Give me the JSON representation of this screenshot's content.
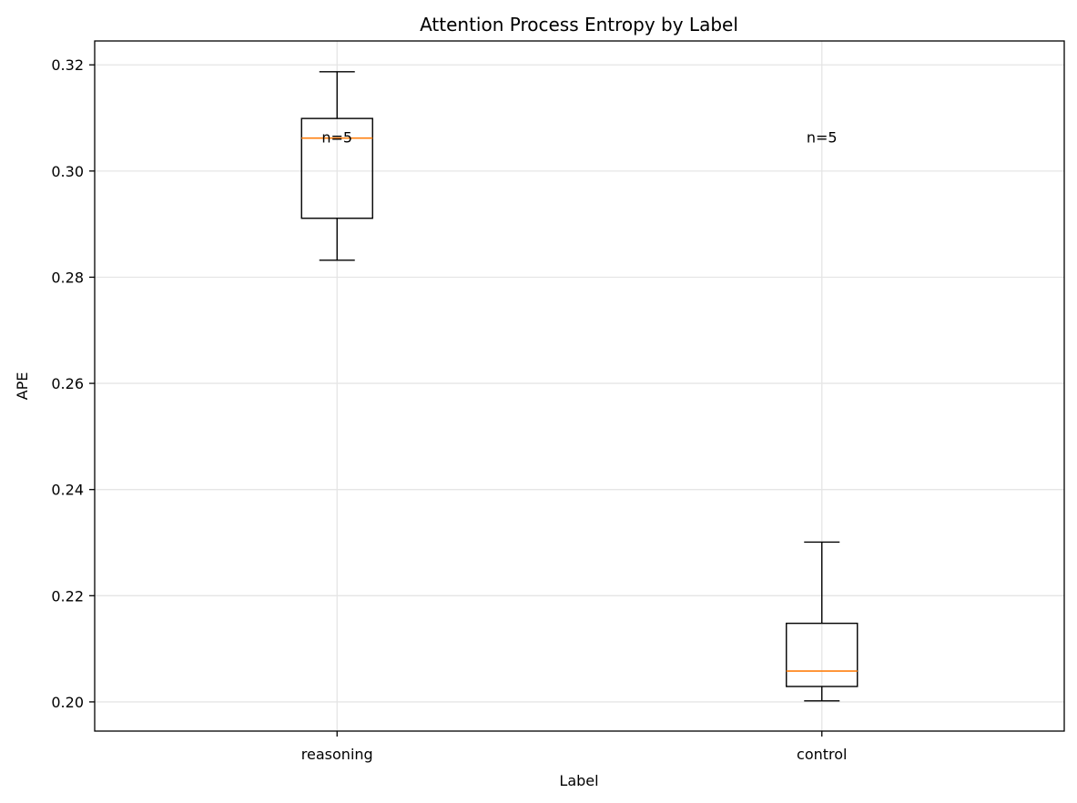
{
  "chart_data": {
    "type": "box",
    "title": "Attention Process Entropy by Label",
    "xlabel": "Label",
    "ylabel": "APE",
    "ylim": [
      0.1945,
      0.3245
    ],
    "yticks": [
      0.2,
      0.22,
      0.24,
      0.26,
      0.28,
      0.3,
      0.32
    ],
    "ytick_labels": [
      "0.20",
      "0.22",
      "0.24",
      "0.26",
      "0.28",
      "0.30",
      "0.32"
    ],
    "grid": true,
    "categories": [
      "reasoning",
      "control"
    ],
    "boxes": [
      {
        "category": "reasoning",
        "whisker_low": 0.2832,
        "q1": 0.2911,
        "median": 0.3062,
        "q3": 0.3099,
        "whisker_high": 0.3187,
        "annotation": "n=5"
      },
      {
        "category": "control",
        "whisker_low": 0.2002,
        "q1": 0.2029,
        "median": 0.2058,
        "q3": 0.2148,
        "whisker_high": 0.2301,
        "annotation": "n=5"
      }
    ],
    "colors": {
      "box": "#000000",
      "median": "#ff7f0e",
      "grid": "#e5e5e5"
    }
  }
}
